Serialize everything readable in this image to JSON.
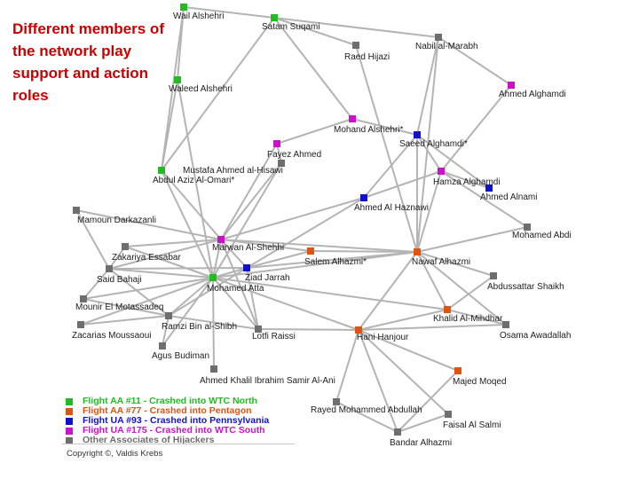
{
  "heading": "Different members of the network play support and action roles",
  "colors": {
    "aa11": "#22bb22",
    "aa77": "#dd5511",
    "ua93": "#1111cc",
    "ua175": "#cc11cc",
    "other": "#6e6e6e",
    "edge": "#b4b4b4"
  },
  "legend": [
    {
      "label": "Flight AA #11 - Crashed into WTC North",
      "group": "aa11"
    },
    {
      "label": "Flight AA #77 - Crashed into Pentagon",
      "group": "aa77"
    },
    {
      "label": "Flight UA #93 - Crashed into Pennsylvania",
      "group": "ua93"
    },
    {
      "label": "Flight UA #175 - Crashed into WTC South",
      "group": "ua175"
    },
    {
      "label": "Other Associates of Hijackers",
      "group": "other"
    }
  ],
  "copyright": "Copyright ©, Valdis Krebs",
  "nodes": [
    {
      "id": "wail",
      "label": "Wail Alshehri",
      "group": "aa11"
    },
    {
      "id": "satam",
      "label": "Satam Suqami",
      "group": "aa11"
    },
    {
      "id": "waleed",
      "label": "Waleed Alshehri",
      "group": "aa11"
    },
    {
      "id": "abdulaziz",
      "label": "Abdul Aziz Al-Omari*",
      "group": "aa11"
    },
    {
      "id": "atta",
      "label": "Mohamed Atta",
      "group": "aa11"
    },
    {
      "id": "salem",
      "label": "Salem Alhazmi*",
      "group": "aa77"
    },
    {
      "id": "nawaf",
      "label": "Nawaf Alhazmi",
      "group": "aa77"
    },
    {
      "id": "khalid",
      "label": "Khalid Al-Mihdhar",
      "group": "aa77"
    },
    {
      "id": "hani",
      "label": "Hani Hanjour",
      "group": "aa77"
    },
    {
      "id": "majed",
      "label": "Majed Moqed",
      "group": "aa77"
    },
    {
      "id": "saeed",
      "label": "Saeed Alghamdi*",
      "group": "ua93"
    },
    {
      "id": "ahmedalnami",
      "label": "Ahmed Alnami",
      "group": "ua93"
    },
    {
      "id": "haznawi",
      "label": "Ahmed Al Haznawi",
      "group": "ua93"
    },
    {
      "id": "jarrah",
      "label": "Ziad Jarrah",
      "group": "ua93"
    },
    {
      "id": "ahmedalghamdi",
      "label": "Ahmed Alghamdi",
      "group": "ua175"
    },
    {
      "id": "mohand",
      "label": "Mohand Alshehri*",
      "group": "ua175"
    },
    {
      "id": "fayez",
      "label": "Fayez Ahmed",
      "group": "ua175"
    },
    {
      "id": "hamza",
      "label": "Hamza Alghamdi",
      "group": "ua175"
    },
    {
      "id": "marwan",
      "label": "Marwan Al-Shehhi",
      "group": "ua175"
    },
    {
      "id": "nabil",
      "label": "Nabil al-Marabh",
      "group": "other"
    },
    {
      "id": "raed",
      "label": "Raed Hijazi",
      "group": "other"
    },
    {
      "id": "mustafa",
      "label": "Mustafa Ahmed al-Hisawi",
      "group": "other"
    },
    {
      "id": "mamoun",
      "label": "Mamoun Darkazanli",
      "group": "other"
    },
    {
      "id": "zakariya",
      "label": "Zakariya Essabar",
      "group": "other"
    },
    {
      "id": "said",
      "label": "Said Bahaji",
      "group": "other"
    },
    {
      "id": "mounir",
      "label": "Mounir El Motassadeq",
      "group": "other"
    },
    {
      "id": "ramzi",
      "label": "Ramzi Bin al-Shibh",
      "group": "other"
    },
    {
      "id": "zacarias",
      "label": "Zacarias Moussaoui",
      "group": "other"
    },
    {
      "id": "agus",
      "label": "Agus Budiman",
      "group": "other"
    },
    {
      "id": "lotfi",
      "label": "Lotfi Raissi",
      "group": "other"
    },
    {
      "id": "ahmedkhalil",
      "label": "Ahmed Khalil Ibrahim Samir Al-Ani",
      "group": "other"
    },
    {
      "id": "rayed",
      "label": "Rayed Mohammed Abdullah",
      "group": "other"
    },
    {
      "id": "bandar",
      "label": "Bandar Alhazmi",
      "group": "other"
    },
    {
      "id": "faisal",
      "label": "Faisal Al Salmi",
      "group": "other"
    },
    {
      "id": "osama",
      "label": "Osama Awadallah",
      "group": "other"
    },
    {
      "id": "abdussattar",
      "label": "Abdussattar Shaikh",
      "group": "other"
    },
    {
      "id": "mohamedabdi",
      "label": "Mohamed Abdi",
      "group": "other"
    }
  ],
  "edges": [
    [
      "wail",
      "satam"
    ],
    [
      "wail",
      "waleed"
    ],
    [
      "wail",
      "abdulaziz"
    ],
    [
      "satam",
      "raed"
    ],
    [
      "satam",
      "nabil"
    ],
    [
      "satam",
      "abdulaziz"
    ],
    [
      "satam",
      "mohand"
    ],
    [
      "waleed",
      "abdulaziz"
    ],
    [
      "waleed",
      "atta"
    ],
    [
      "nabil",
      "ahmedalghamdi"
    ],
    [
      "nabil",
      "saeed"
    ],
    [
      "nabil",
      "nawaf"
    ],
    [
      "raed",
      "nawaf"
    ],
    [
      "ahmedalghamdi",
      "hamza"
    ],
    [
      "mohand",
      "saeed"
    ],
    [
      "mohand",
      "fayez"
    ],
    [
      "fayez",
      "mustafa"
    ],
    [
      "fayez",
      "marwan"
    ],
    [
      "saeed",
      "hamza"
    ],
    [
      "saeed",
      "ahmedalnami"
    ],
    [
      "saeed",
      "nawaf"
    ],
    [
      "saeed",
      "haznawi"
    ],
    [
      "hamza",
      "ahmedalnami"
    ],
    [
      "hamza",
      "haznawi"
    ],
    [
      "hamza",
      "nawaf"
    ],
    [
      "hamza",
      "mohamedabdi"
    ],
    [
      "mustafa",
      "marwan"
    ],
    [
      "mustafa",
      "atta"
    ],
    [
      "abdulaziz",
      "atta"
    ],
    [
      "abdulaziz",
      "marwan"
    ],
    [
      "haznawi",
      "marwan"
    ],
    [
      "haznawi",
      "jarrah"
    ],
    [
      "mamoun",
      "marwan"
    ],
    [
      "mamoun",
      "said"
    ],
    [
      "zakariya",
      "marwan"
    ],
    [
      "zakariya",
      "atta"
    ],
    [
      "zakariya",
      "said"
    ],
    [
      "marwan",
      "said"
    ],
    [
      "marwan",
      "atta"
    ],
    [
      "marwan",
      "jarrah"
    ],
    [
      "marwan",
      "salem"
    ],
    [
      "marwan",
      "nawaf"
    ],
    [
      "marwan",
      "lotfi"
    ],
    [
      "salem",
      "nawaf"
    ],
    [
      "salem",
      "jarrah"
    ],
    [
      "jarrah",
      "said"
    ],
    [
      "jarrah",
      "atta"
    ],
    [
      "jarrah",
      "ramzi"
    ],
    [
      "jarrah",
      "nawaf"
    ],
    [
      "jarrah",
      "lotfi"
    ],
    [
      "nawaf",
      "mohamedabdi"
    ],
    [
      "nawaf",
      "abdussattar"
    ],
    [
      "nawaf",
      "khalid"
    ],
    [
      "nawaf",
      "osama"
    ],
    [
      "nawaf",
      "hani"
    ],
    [
      "nawaf",
      "atta"
    ],
    [
      "said",
      "atta"
    ],
    [
      "said",
      "ramzi"
    ],
    [
      "mounir",
      "atta"
    ],
    [
      "mounir",
      "said"
    ],
    [
      "mounir",
      "ramzi"
    ],
    [
      "atta",
      "ramzi"
    ],
    [
      "atta",
      "zacarias"
    ],
    [
      "atta",
      "agus"
    ],
    [
      "atta",
      "ahmedkhalil"
    ],
    [
      "atta",
      "lotfi"
    ],
    [
      "atta",
      "hani"
    ],
    [
      "atta",
      "khalid"
    ],
    [
      "ramzi",
      "zacarias"
    ],
    [
      "ramzi",
      "agus"
    ],
    [
      "ramzi",
      "lotfi"
    ],
    [
      "lotfi",
      "hani"
    ],
    [
      "hani",
      "khalid"
    ],
    [
      "hani",
      "rayed"
    ],
    [
      "hani",
      "majed"
    ],
    [
      "hani",
      "faisal"
    ],
    [
      "hani",
      "bandar"
    ],
    [
      "hani",
      "osama"
    ],
    [
      "khalid",
      "abdussattar"
    ],
    [
      "khalid",
      "osama"
    ],
    [
      "majed",
      "bandar"
    ],
    [
      "rayed",
      "bandar"
    ],
    [
      "faisal",
      "bandar"
    ]
  ]
}
